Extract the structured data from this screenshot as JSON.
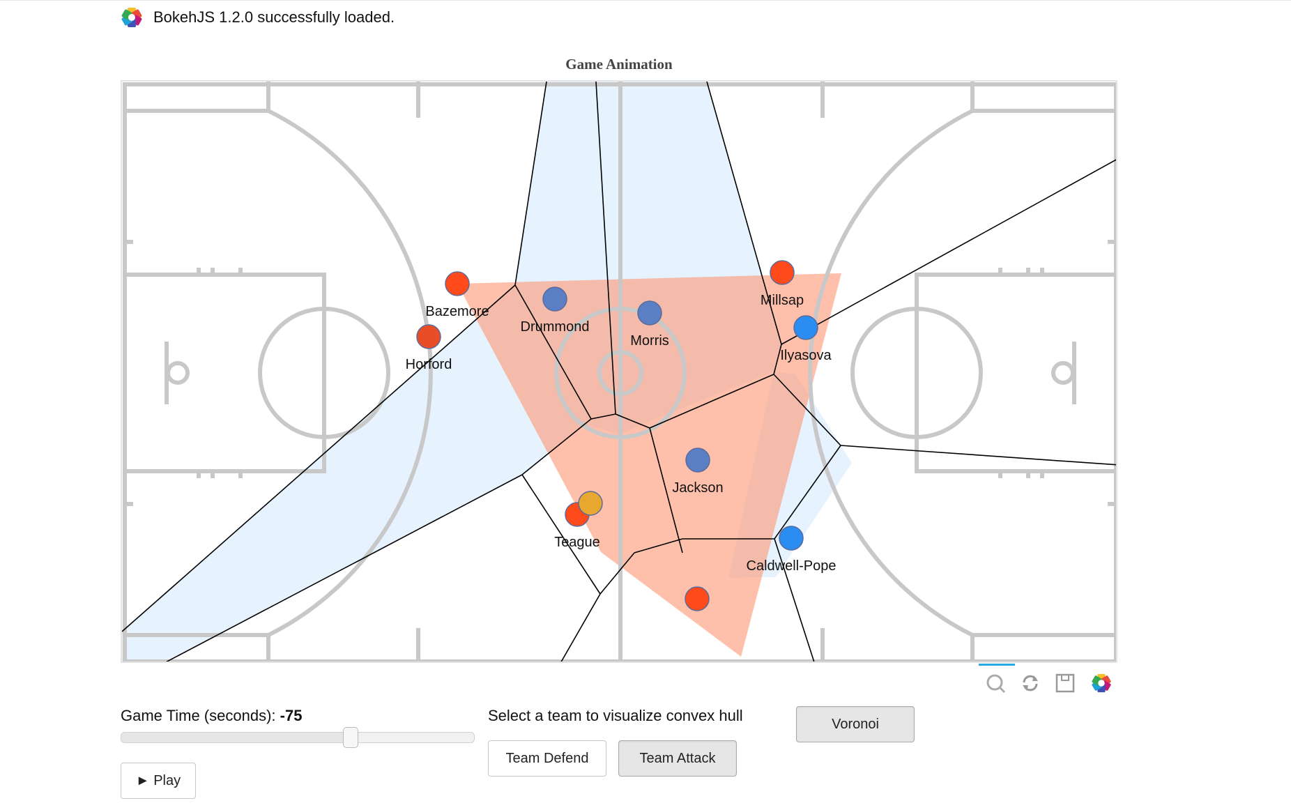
{
  "header": {
    "loaded_text": "BokehJS 1.2.0 successfully loaded."
  },
  "plot": {
    "title": "Game Animation",
    "players": [
      {
        "name": "Bazemore",
        "team": "attack",
        "color": "#ff4a1c"
      },
      {
        "name": "Horford",
        "team": "attack",
        "color": "#e84d26"
      },
      {
        "name": "Millsap",
        "team": "attack",
        "color": "#ff4a1c"
      },
      {
        "name": "Teague",
        "team": "attack",
        "color": "#ff4a1c"
      },
      {
        "name": "",
        "team": "attack",
        "color": "#ff4a1c"
      },
      {
        "name": "Drummond",
        "team": "defend",
        "color": "#5a7fc4"
      },
      {
        "name": "Morris",
        "team": "defend",
        "color": "#5a7fc4"
      },
      {
        "name": "Jackson",
        "team": "defend",
        "color": "#5a7fc4"
      },
      {
        "name": "Ilyasova",
        "team": "defend",
        "color": "#2b8cf2"
      },
      {
        "name": "Caldwell-Pope",
        "team": "defend",
        "color": "#2b8cf2"
      },
      {
        "name": "",
        "team": "ball",
        "color": "#e8a830"
      }
    ],
    "colors": {
      "hull": "#ff8c66",
      "voronoi_fill": "#d6ebff",
      "court_lines": "#c8c8c8"
    }
  },
  "toolbar": {
    "tools": [
      "reset-zoom-icon",
      "reset-icon",
      "save-icon",
      "bokeh-logo-icon"
    ]
  },
  "controls": {
    "slider_label": "Game Time (seconds): ",
    "slider_value": "-75",
    "slider_fraction": 0.65,
    "play_label": "► Play",
    "hull_label": "Select a team to visualize convex hull",
    "team_defend_label": "Team Defend",
    "team_attack_label": "Team Attack",
    "voronoi_label": "Voronoi",
    "active_team": "attack"
  }
}
